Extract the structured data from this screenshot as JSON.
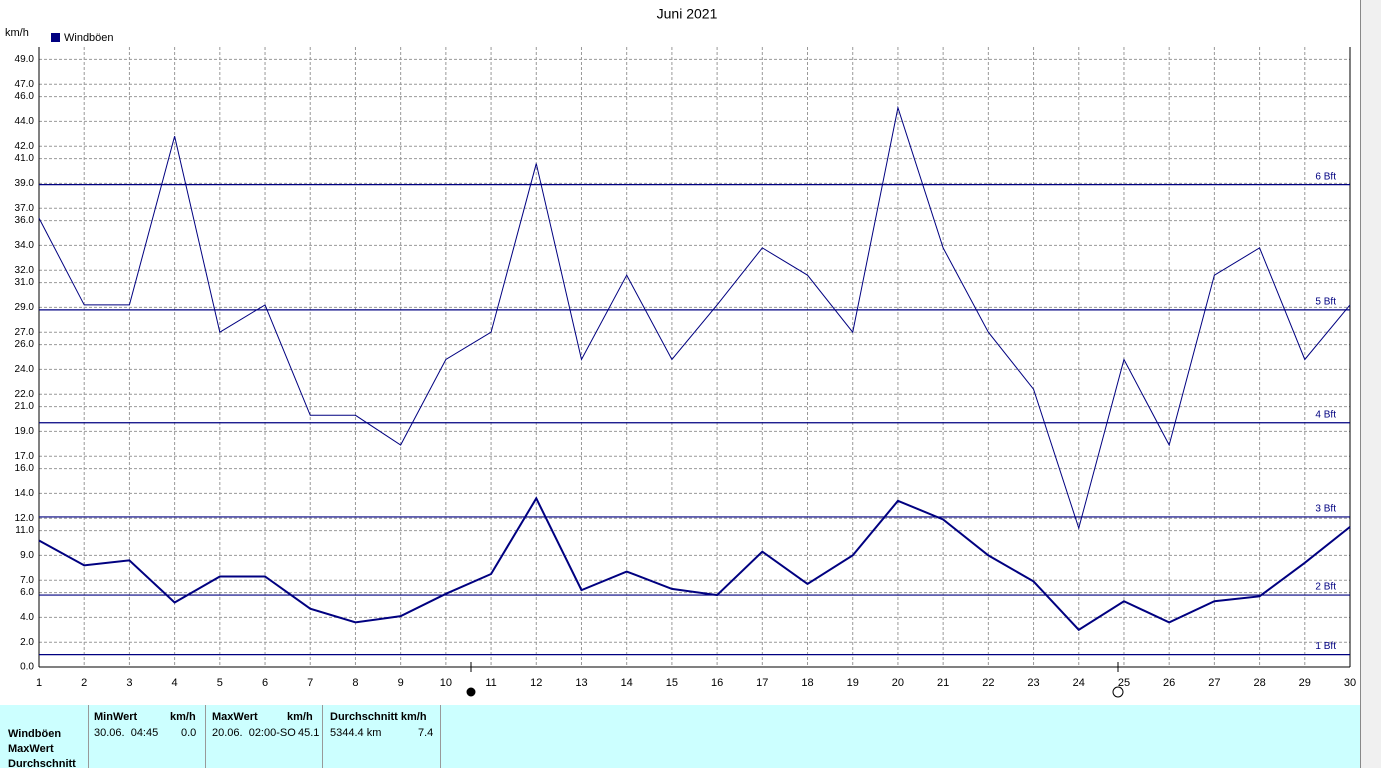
{
  "chart_data": {
    "type": "line",
    "title": "Juni 2021",
    "y_unit": "km/h",
    "x": [
      1,
      2,
      3,
      4,
      5,
      6,
      7,
      8,
      9,
      10,
      11,
      12,
      13,
      14,
      15,
      16,
      17,
      18,
      19,
      20,
      21,
      22,
      23,
      24,
      25,
      26,
      27,
      28,
      29,
      30
    ],
    "xlim": [
      1,
      30
    ],
    "xticks": [
      1,
      2,
      3,
      4,
      5,
      6,
      7,
      8,
      9,
      10,
      11,
      12,
      13,
      14,
      15,
      16,
      17,
      18,
      19,
      20,
      21,
      22,
      23,
      24,
      25,
      26,
      27,
      28,
      29,
      30
    ],
    "series": [
      {
        "name": "Windböen",
        "color": "#000080",
        "line_width": 1,
        "values": [
          36.2,
          29.2,
          29.2,
          42.8,
          27.0,
          29.2,
          20.3,
          20.3,
          17.9,
          24.8,
          27.0,
          40.6,
          24.8,
          31.6,
          24.8,
          29.2,
          33.8,
          31.6,
          27.0,
          45.1,
          33.8,
          27.0,
          22.4,
          11.2,
          24.8,
          17.9,
          31.6,
          33.8,
          24.8,
          29.2
        ]
      },
      {
        "color": "#000080",
        "line_width": 2,
        "values": [
          10.2,
          8.2,
          8.6,
          5.2,
          7.3,
          7.3,
          4.7,
          3.6,
          4.1,
          5.9,
          7.5,
          13.6,
          6.2,
          7.7,
          6.3,
          5.8,
          9.3,
          6.7,
          9.0,
          13.4,
          11.9,
          9.0,
          6.9,
          3.0,
          5.3,
          3.6,
          5.3,
          5.7,
          8.4,
          11.3
        ]
      }
    ],
    "ylim": [
      0,
      50
    ],
    "yticks": [
      {
        "value": 0,
        "label": "0.0"
      },
      {
        "value": 2,
        "label": "2.0"
      },
      {
        "value": 4,
        "label": "4.0"
      },
      {
        "value": 6,
        "label": "6.0"
      },
      {
        "value": 7,
        "label": "7.0"
      },
      {
        "value": 9,
        "label": "9.0"
      },
      {
        "value": 11,
        "label": "11.0"
      },
      {
        "value": 12,
        "label": "12.0"
      },
      {
        "value": 14,
        "label": "14.0"
      },
      {
        "value": 16,
        "label": "16.0"
      },
      {
        "value": 17,
        "label": "17.0"
      },
      {
        "value": 19,
        "label": "19.0"
      },
      {
        "value": 21,
        "label": "21.0"
      },
      {
        "value": 22,
        "label": "22.0"
      },
      {
        "value": 24,
        "label": "24.0"
      },
      {
        "value": 26,
        "label": "26.0"
      },
      {
        "value": 27,
        "label": "27.0"
      },
      {
        "value": 29,
        "label": "29.0"
      },
      {
        "value": 31,
        "label": "31.0"
      },
      {
        "value": 32,
        "label": "32.0"
      },
      {
        "value": 34,
        "label": "34.0"
      },
      {
        "value": 36,
        "label": "36.0"
      },
      {
        "value": 37,
        "label": "37.0"
      },
      {
        "value": 39,
        "label": "39.0"
      },
      {
        "value": 41,
        "label": "41.0"
      },
      {
        "value": 42,
        "label": "42.0"
      },
      {
        "value": 44,
        "label": "44.0"
      },
      {
        "value": 46,
        "label": "46.0"
      },
      {
        "value": 47,
        "label": "47.0"
      },
      {
        "value": 49,
        "label": "49.0"
      }
    ],
    "grid": true,
    "reference_lines": [
      {
        "value": 1,
        "label": "1 Bft"
      },
      {
        "value": 5.8,
        "label": "2 Bft"
      },
      {
        "value": 12.1,
        "label": "3 Bft"
      },
      {
        "value": 19.7,
        "label": "4 Bft"
      },
      {
        "value": 28.8,
        "label": "5 Bft"
      },
      {
        "value": 38.9,
        "label": "6 Bft"
      }
    ],
    "reference_color": "#000080"
  },
  "stats_table": {
    "row_labels": [
      "Windböen",
      "MaxWert",
      "Durchschnitt"
    ],
    "headers": [
      "MinWert",
      "km/h",
      "MaxWert",
      "km/h",
      "Durchschnitt km/h"
    ],
    "row": [
      "30.06.  04:45",
      "0.0",
      "20.06.  02:00-SO",
      "45.1",
      "5344.4 km",
      "7.4"
    ]
  }
}
